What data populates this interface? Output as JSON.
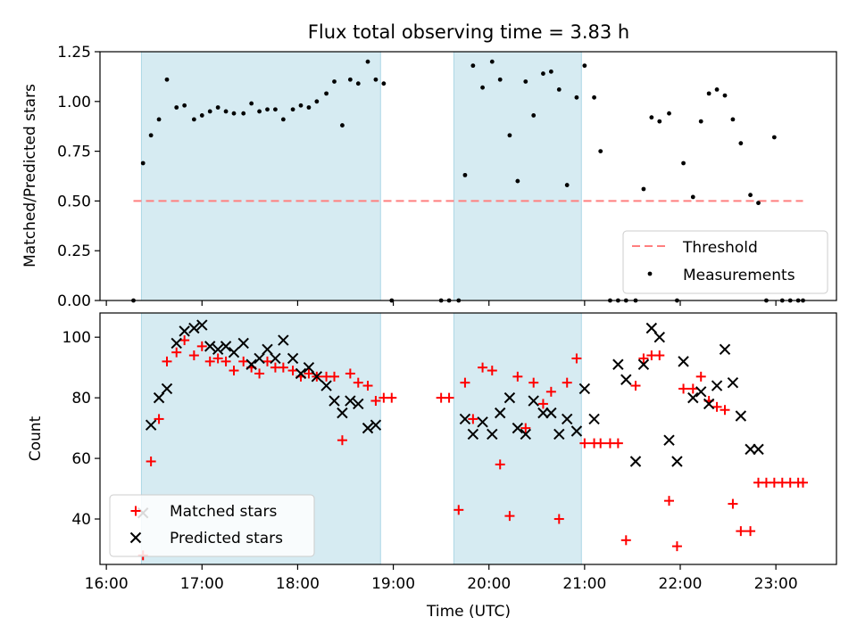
{
  "title": "Flux total observing time = 3.83 h",
  "colors": {
    "band": "#add8e6",
    "threshold": "#ff7f7f",
    "measurement": "#000000",
    "matched": "#ff0000",
    "predicted": "#000000"
  },
  "chart_data": [
    {
      "type": "scatter",
      "ylabel": "Matched/Predicted stars",
      "ylim": [
        0,
        1.25
      ],
      "xlim": [
        "15:56",
        "23:38"
      ],
      "yticks": [
        "0.00",
        "0.25",
        "0.50",
        "0.75",
        "1.00",
        "1.25"
      ],
      "yticks_values": [
        0,
        0.25,
        0.5,
        0.75,
        1.0,
        1.25
      ],
      "shaded_intervals": [
        [
          "16:22",
          "18:52"
        ],
        [
          "19:38",
          "20:58"
        ]
      ],
      "threshold": {
        "name": "Threshold",
        "value": 0.5,
        "x_range": [
          "16:17",
          "23:17"
        ]
      },
      "legend": {
        "position": "lower-right",
        "entries": [
          "Threshold",
          "Measurements"
        ]
      },
      "series": [
        {
          "name": "Measurements",
          "x": [
            "16:17",
            "16:23",
            "16:28",
            "16:33",
            "16:38",
            "16:44",
            "16:49",
            "16:55",
            "17:00",
            "17:05",
            "17:10",
            "17:15",
            "17:20",
            "17:26",
            "17:31",
            "17:36",
            "17:41",
            "17:46",
            "17:51",
            "17:57",
            "18:02",
            "18:07",
            "18:12",
            "18:18",
            "18:23",
            "18:28",
            "18:33",
            "18:38",
            "18:44",
            "18:49",
            "18:54",
            "18:59",
            "19:30",
            "19:35",
            "19:41",
            "19:45",
            "19:50",
            "19:56",
            "20:02",
            "20:07",
            "20:13",
            "20:18",
            "20:23",
            "20:28",
            "20:34",
            "20:39",
            "20:44",
            "20:49",
            "20:55",
            "21:00",
            "21:06",
            "21:10",
            "21:16",
            "21:21",
            "21:26",
            "21:32",
            "21:37",
            "21:42",
            "21:47",
            "21:53",
            "21:58",
            "22:02",
            "22:08",
            "22:13",
            "22:18",
            "22:23",
            "22:28",
            "22:33",
            "22:38",
            "22:44",
            "22:49",
            "22:54",
            "22:59",
            "23:04",
            "23:09",
            "23:14",
            "23:17"
          ],
          "y": [
            0.0,
            0.69,
            0.83,
            0.91,
            1.11,
            0.97,
            0.98,
            0.91,
            0.93,
            0.95,
            0.97,
            0.95,
            0.94,
            0.94,
            0.99,
            0.95,
            0.96,
            0.96,
            0.91,
            0.96,
            0.98,
            0.97,
            1.0,
            1.04,
            1.1,
            0.88,
            1.11,
            1.09,
            1.2,
            1.11,
            1.09,
            0.0,
            0.0,
            0.0,
            0.0,
            0.63,
            1.18,
            1.07,
            1.2,
            1.11,
            0.83,
            0.6,
            1.1,
            0.93,
            1.14,
            1.15,
            1.06,
            0.58,
            1.02,
            1.18,
            1.02,
            0.75,
            0.0,
            0.0,
            0.0,
            0.0,
            0.56,
            0.92,
            0.9,
            0.94,
            0.0,
            0.69,
            0.52,
            0.9,
            1.04,
            1.06,
            1.03,
            0.91,
            0.79,
            0.53,
            0.49,
            0.0,
            0.82,
            0.0,
            0.0,
            0.0,
            0.0
          ]
        }
      ]
    },
    {
      "type": "scatter",
      "xlabel": "Time (UTC)",
      "ylabel": "Count",
      "ylim": [
        25,
        108
      ],
      "xlim": [
        "15:56",
        "23:38"
      ],
      "yticks": [
        "40",
        "60",
        "80",
        "100"
      ],
      "yticks_values": [
        40,
        60,
        80,
        100
      ],
      "xticks": [
        "16:00",
        "17:00",
        "18:00",
        "19:00",
        "20:00",
        "21:00",
        "22:00",
        "23:00"
      ],
      "shaded_intervals": [
        [
          "16:22",
          "18:52"
        ],
        [
          "19:38",
          "20:58"
        ]
      ],
      "legend": {
        "position": "lower-left",
        "entries": [
          "Matched stars",
          "Predicted stars"
        ]
      },
      "series": [
        {
          "name": "Matched stars",
          "x": [
            "16:23",
            "16:28",
            "16:33",
            "16:38",
            "16:44",
            "16:49",
            "16:55",
            "17:00",
            "17:05",
            "17:10",
            "17:15",
            "17:20",
            "17:26",
            "17:31",
            "17:36",
            "17:41",
            "17:46",
            "17:51",
            "17:57",
            "18:02",
            "18:07",
            "18:12",
            "18:18",
            "18:23",
            "18:28",
            "18:33",
            "18:38",
            "18:44",
            "18:49",
            "18:54",
            "18:59",
            "19:30",
            "19:35",
            "19:41",
            "19:45",
            "19:50",
            "19:56",
            "20:02",
            "20:07",
            "20:13",
            "20:18",
            "20:23",
            "20:28",
            "20:34",
            "20:39",
            "20:44",
            "20:49",
            "20:55",
            "21:00",
            "21:06",
            "21:10",
            "21:16",
            "21:21",
            "21:26",
            "21:32",
            "21:37",
            "21:42",
            "21:47",
            "21:53",
            "21:58",
            "22:02",
            "22:08",
            "22:13",
            "22:18",
            "22:23",
            "22:28",
            "22:33",
            "22:38",
            "22:44",
            "22:49",
            "22:54",
            "22:59",
            "23:04",
            "23:09",
            "23:14",
            "23:17"
          ],
          "y": [
            28,
            59,
            73,
            92,
            95,
            99,
            94,
            97,
            92,
            93,
            92,
            89,
            92,
            90,
            88,
            92,
            90,
            90,
            89,
            87,
            88,
            87,
            87,
            87,
            66,
            88,
            85,
            84,
            79,
            80,
            80,
            80,
            80,
            43,
            85,
            73,
            90,
            89,
            58,
            41,
            87,
            70,
            85,
            78,
            82,
            40,
            85,
            93,
            65,
            65,
            65,
            65,
            65,
            33,
            84,
            93,
            94,
            94,
            46,
            31,
            83,
            83,
            87,
            79,
            77,
            76,
            45,
            36,
            36,
            52,
            52,
            52,
            52,
            52,
            52,
            52
          ]
        },
        {
          "name": "Predicted stars",
          "x": [
            "16:23",
            "16:28",
            "16:33",
            "16:38",
            "16:44",
            "16:49",
            "16:55",
            "17:00",
            "17:05",
            "17:10",
            "17:15",
            "17:20",
            "17:26",
            "17:31",
            "17:36",
            "17:41",
            "17:46",
            "17:51",
            "17:57",
            "18:02",
            "18:07",
            "18:12",
            "18:18",
            "18:23",
            "18:28",
            "18:33",
            "18:38",
            "18:44",
            "18:49",
            "19:45",
            "19:50",
            "19:56",
            "20:02",
            "20:07",
            "20:13",
            "20:18",
            "20:23",
            "20:28",
            "20:34",
            "20:39",
            "20:44",
            "20:49",
            "20:55",
            "21:00",
            "21:06",
            "21:21",
            "21:26",
            "21:32",
            "21:37",
            "21:42",
            "21:47",
            "21:53",
            "21:58",
            "22:02",
            "22:08",
            "22:13",
            "22:18",
            "22:23",
            "22:28",
            "22:33",
            "22:38",
            "22:44",
            "22:49"
          ],
          "y": [
            42,
            71,
            80,
            83,
            98,
            102,
            103,
            104,
            97,
            96,
            97,
            95,
            98,
            91,
            93,
            96,
            93,
            99,
            93,
            88,
            90,
            87,
            84,
            79,
            75,
            79,
            78,
            70,
            71,
            73,
            68,
            72,
            68,
            75,
            80,
            70,
            68,
            79,
            75,
            75,
            68,
            73,
            69,
            83,
            73,
            91,
            86,
            59,
            91,
            103,
            100,
            66,
            59,
            92,
            80,
            82,
            78,
            84,
            96,
            85,
            74,
            63,
            63
          ]
        }
      ]
    }
  ]
}
